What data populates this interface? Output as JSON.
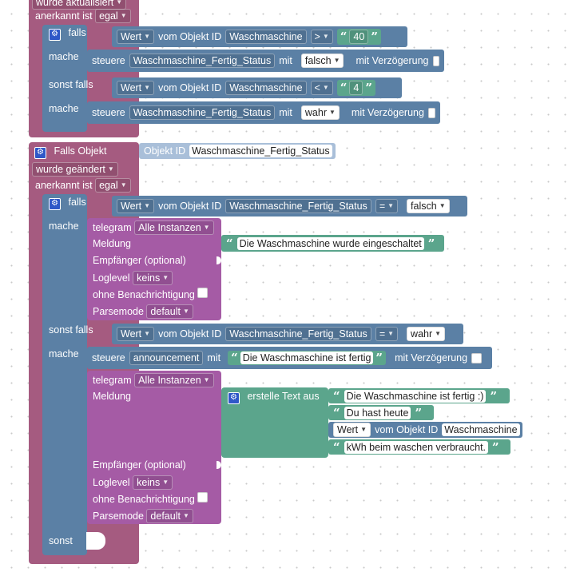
{
  "evt_top": {
    "updated_label": "wurde aktualisiert",
    "ack_label": "anerkannt ist",
    "ack_value": "egal"
  },
  "if1": {
    "falls": "falls",
    "mache": "mache",
    "sonst_falls": "sonst falls",
    "cond1": {
      "wert": "Wert",
      "vom": "vom Objekt ID",
      "obj": "Waschmaschine",
      "op": ">",
      "num": "40"
    },
    "do1": {
      "steuere": "steuere",
      "obj": "Waschmaschine_Fertig_Status",
      "mit": "mit",
      "val": "falsch",
      "delay": "mit Verzögerung"
    },
    "cond2": {
      "wert": "Wert",
      "vom": "vom Objekt ID",
      "obj": "Waschmaschine",
      "op": "<",
      "num": "4"
    },
    "do2": {
      "steuere": "steuere",
      "obj": "Waschmaschine_Fertig_Status",
      "mit": "mit",
      "val": "wahr",
      "delay": "mit Verzögerung"
    }
  },
  "evt2": {
    "title": "Falls Objekt",
    "objid_label": "Objekt ID",
    "objid": "Waschmaschine_Fertig_Status",
    "changed": "wurde geändert",
    "ack_label": "anerkannt ist",
    "ack_value": "egal"
  },
  "if2": {
    "falls": "falls",
    "mache": "mache",
    "sonst_falls": "sonst falls",
    "sonst": "sonst",
    "cond1": {
      "wert": "Wert",
      "vom": "vom Objekt ID",
      "obj": "Waschmaschine_Fertig_Status",
      "op": "=",
      "val": "falsch"
    },
    "cond2": {
      "wert": "Wert",
      "vom": "vom Objekt ID",
      "obj": "Waschmaschine_Fertig_Status",
      "op": "=",
      "val": "wahr"
    }
  },
  "tg1": {
    "telegram": "telegram",
    "instances": "Alle Instanzen",
    "meldung": "Meldung",
    "message": "Die Waschmaschine wurde eingeschaltet",
    "empf": "Empfänger (optional)",
    "loglevel": "Loglevel",
    "loglevel_val": "keins",
    "ohne": "ohne Benachrichtigung",
    "parsemode": "Parsemode",
    "parsemode_val": "default"
  },
  "steuere_ann": {
    "steuere": "steuere",
    "obj": "announcement",
    "mit": "mit",
    "text": "Die Waschmaschine ist fertig",
    "delay": "mit Verzögerung"
  },
  "tg2": {
    "telegram": "telegram",
    "instances": "Alle Instanzen",
    "meldung": "Meldung",
    "empf": "Empfänger (optional)",
    "loglevel": "Loglevel",
    "loglevel_val": "keins",
    "ohne": "ohne Benachrichtigung",
    "parsemode": "Parsemode",
    "parsemode_val": "default"
  },
  "create_text": {
    "label": "erstelle Text aus",
    "t1": "Die Waschmaschine ist fertig :)",
    "t2": "Du hast heute",
    "wert": "Wert",
    "vom": "vom Objekt ID",
    "obj": "Waschmaschine",
    "t4": "kWh beim waschen verbraucht."
  },
  "colors": {
    "event": "#a55b80",
    "control": "#5b80a5",
    "telegram": "#a55ba5",
    "text": "#5ba58c",
    "workspace": "#ffffff"
  }
}
